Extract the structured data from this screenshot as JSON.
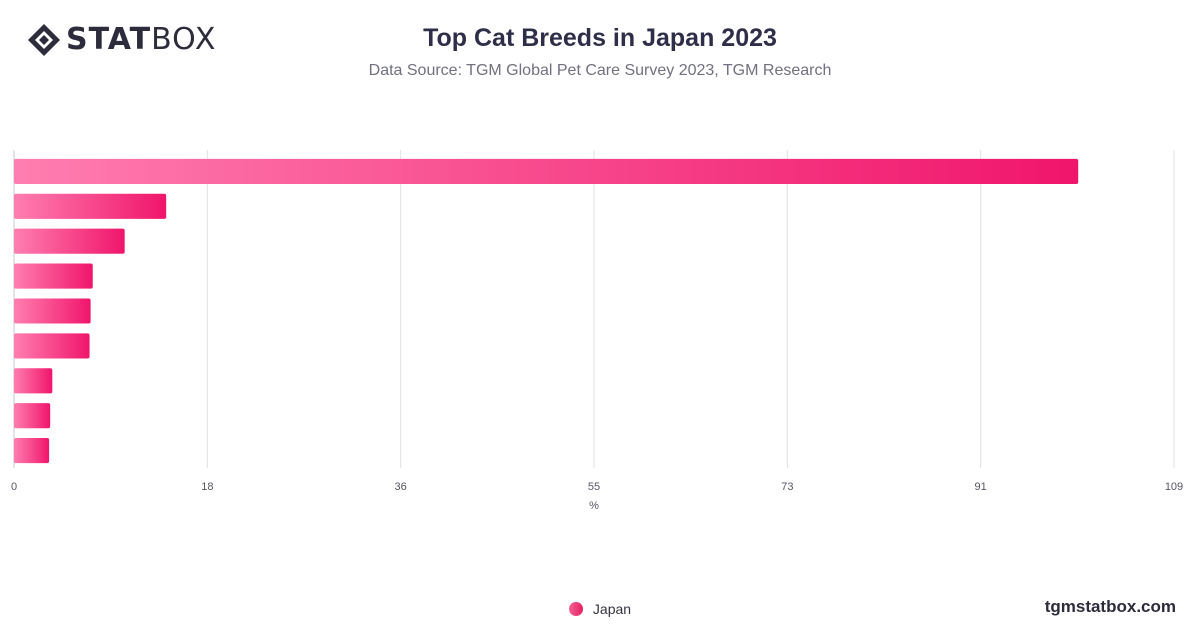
{
  "brand": {
    "logo_bold": "STAT",
    "logo_light": "BOX",
    "watermark": "tgmstatbox.com",
    "accent_start": "#ff7eb0",
    "accent_end": "#f0156b"
  },
  "chart_data": {
    "type": "bar",
    "orientation": "horizontal",
    "title": "Top Cat Breeds in Japan 2023",
    "subtitle": "Data Source: TGM Global Pet Care Survey 2023, TGM Research",
    "xlabel": "%",
    "ylabel": "",
    "xlim": [
      0,
      109
    ],
    "ticks": [
      "0",
      "18",
      "36",
      "55",
      "73",
      "91",
      "109"
    ],
    "categories": [
      "",
      "",
      "",
      "",
      "",
      "",
      "",
      "",
      ""
    ],
    "series": [
      {
        "name": "Japan",
        "values": [
          100,
          14.3,
          10.4,
          7.4,
          7.2,
          7.1,
          3.6,
          3.4,
          3.3
        ]
      }
    ],
    "grid": true,
    "legend": "bottom-center"
  }
}
